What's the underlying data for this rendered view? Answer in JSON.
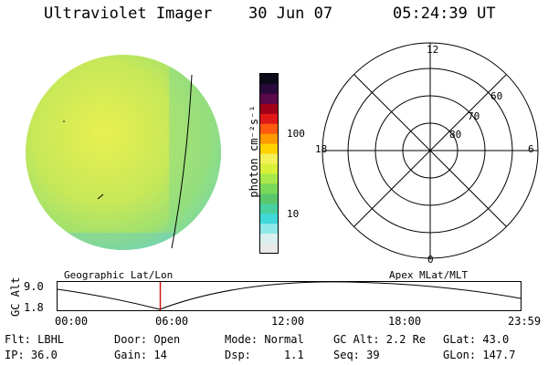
{
  "header": {
    "title": "Ultraviolet Imager",
    "date": "30 Jun 07",
    "time": "05:24:39 UT"
  },
  "colorbar": {
    "unit_label": "photon cm⁻²s⁻¹",
    "ticks": [
      "100",
      "10"
    ],
    "colors": [
      "#0a0a18",
      "#2a0a3a",
      "#5a0a4a",
      "#a00018",
      "#e01818",
      "#ff5a10",
      "#ff9a00",
      "#ffd200",
      "#f4f05a",
      "#d8f03a",
      "#a8e84a",
      "#7ad85a",
      "#5ac86a",
      "#4ad0a0",
      "#40d8d8",
      "#90e8e8",
      "#d8f0f0",
      "#e8eaea"
    ]
  },
  "image_panel": {
    "disk_color": "#c8e858",
    "edge_color": "#7ad8a8"
  },
  "polar_plot": {
    "labels_mlt": [
      "12",
      "18",
      "6",
      "0"
    ],
    "labels_lat": [
      "60",
      "70",
      "80"
    ]
  },
  "strip": {
    "left_header": "Geographic Lat/Lon",
    "right_header": "Apex MLat/MLT",
    "y_axis_label": "GC Alt",
    "y_ticks": [
      "9.0",
      "1.8"
    ],
    "x_ticks": [
      "00:00",
      "06:00",
      "12:00",
      "18:00",
      "23:59"
    ],
    "cursor_color": "#d01818"
  },
  "footer": {
    "row1": [
      "Flt: LBHL",
      "Door: Open",
      "Mode: Normal",
      "GC Alt: 2.2 Re",
      "GLat: 43.0"
    ],
    "row2": [
      "IP: 36.0",
      "Gain: 14",
      "Dsp:     1.1",
      "Seq: 39",
      "GLon: 147.7"
    ]
  }
}
